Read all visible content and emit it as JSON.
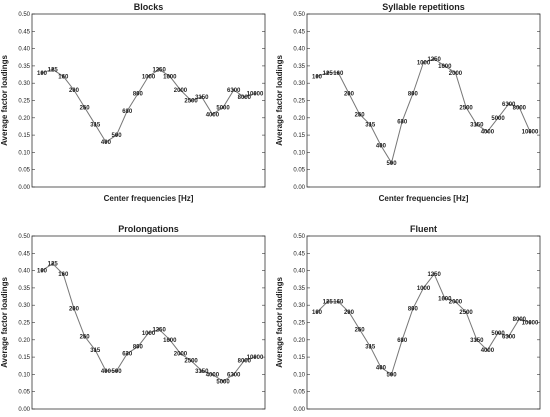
{
  "chart_data": [
    {
      "type": "line",
      "title": "Blocks",
      "xlabel": "Center frequencies [Hz]",
      "ylabel": "Average factor loadings",
      "ylim": [
        0,
        0.5
      ],
      "yticks": [
        "0.00",
        "0.05",
        "0.10",
        "0.15",
        "0.20",
        "0.25",
        "0.30",
        "0.35",
        "0.40",
        "0.45",
        "0.50"
      ],
      "grid": false,
      "categories": [
        "100",
        "125",
        "160",
        "200",
        "250",
        "315",
        "400",
        "500",
        "630",
        "800",
        "1000",
        "1250",
        "1600",
        "2000",
        "2500",
        "3150",
        "4000",
        "5000",
        "6300",
        "8000",
        "10000"
      ],
      "values": [
        0.33,
        0.34,
        0.32,
        0.28,
        0.23,
        0.18,
        0.13,
        0.15,
        0.22,
        0.27,
        0.32,
        0.34,
        0.32,
        0.28,
        0.25,
        0.26,
        0.21,
        0.23,
        0.28,
        0.26,
        0.27
      ]
    },
    {
      "type": "line",
      "title": "Syllable repetitions",
      "xlabel": "Center frequencies [Hz]",
      "ylabel": "Average factor loadings",
      "ylim": [
        0,
        0.5
      ],
      "yticks": [
        "0.00",
        "0.05",
        "0.10",
        "0.15",
        "0.20",
        "0.25",
        "0.30",
        "0.35",
        "0.40",
        "0.45",
        "0.50"
      ],
      "grid": false,
      "categories": [
        "100",
        "125",
        "160",
        "200",
        "250",
        "315",
        "400",
        "500",
        "630",
        "800",
        "1000",
        "1250",
        "1600",
        "2000",
        "2500",
        "3150",
        "4000",
        "5000",
        "6300",
        "8000",
        "10000"
      ],
      "values": [
        0.32,
        0.33,
        0.33,
        0.27,
        0.21,
        0.18,
        0.12,
        0.07,
        0.19,
        0.27,
        0.36,
        0.37,
        0.35,
        0.33,
        0.23,
        0.18,
        0.16,
        0.2,
        0.24,
        0.23,
        0.16
      ]
    },
    {
      "type": "line",
      "title": "Prolongations",
      "xlabel": "Center frequencies [Hz]",
      "ylabel": "Average factor loadings",
      "ylim": [
        0,
        0.5
      ],
      "yticks": [
        "0.00",
        "0.05",
        "0.10",
        "0.15",
        "0.20",
        "0.25",
        "0.30",
        "0.35",
        "0.40",
        "0.45",
        "0.50"
      ],
      "grid": false,
      "categories": [
        "100",
        "125",
        "160",
        "200",
        "250",
        "315",
        "400",
        "500",
        "630",
        "800",
        "1000",
        "1250",
        "1600",
        "2000",
        "2500",
        "3150",
        "4000",
        "5000",
        "6300",
        "8000",
        "10000"
      ],
      "values": [
        0.4,
        0.42,
        0.39,
        0.29,
        0.21,
        0.17,
        0.11,
        0.11,
        0.16,
        0.18,
        0.22,
        0.23,
        0.2,
        0.16,
        0.14,
        0.11,
        0.1,
        0.08,
        0.1,
        0.14,
        0.15
      ]
    },
    {
      "type": "line",
      "title": "Fluent",
      "xlabel": "Center frequencies [Hz]",
      "ylabel": "Average factor loadings",
      "ylim": [
        0,
        0.5
      ],
      "yticks": [
        "0.00",
        "0.05",
        "0.10",
        "0.15",
        "0.20",
        "0.25",
        "0.30",
        "0.35",
        "0.40",
        "0.45",
        "0.50"
      ],
      "grid": false,
      "categories": [
        "100",
        "125",
        "160",
        "200",
        "250",
        "315",
        "400",
        "500",
        "630",
        "800",
        "1000",
        "1250",
        "1600",
        "2000",
        "2500",
        "3150",
        "4000",
        "5000",
        "6300",
        "8000",
        "10000"
      ],
      "values": [
        0.28,
        0.31,
        0.31,
        0.28,
        0.23,
        0.18,
        0.12,
        0.1,
        0.2,
        0.29,
        0.35,
        0.39,
        0.32,
        0.31,
        0.28,
        0.2,
        0.17,
        0.22,
        0.21,
        0.26,
        0.25
      ]
    }
  ]
}
